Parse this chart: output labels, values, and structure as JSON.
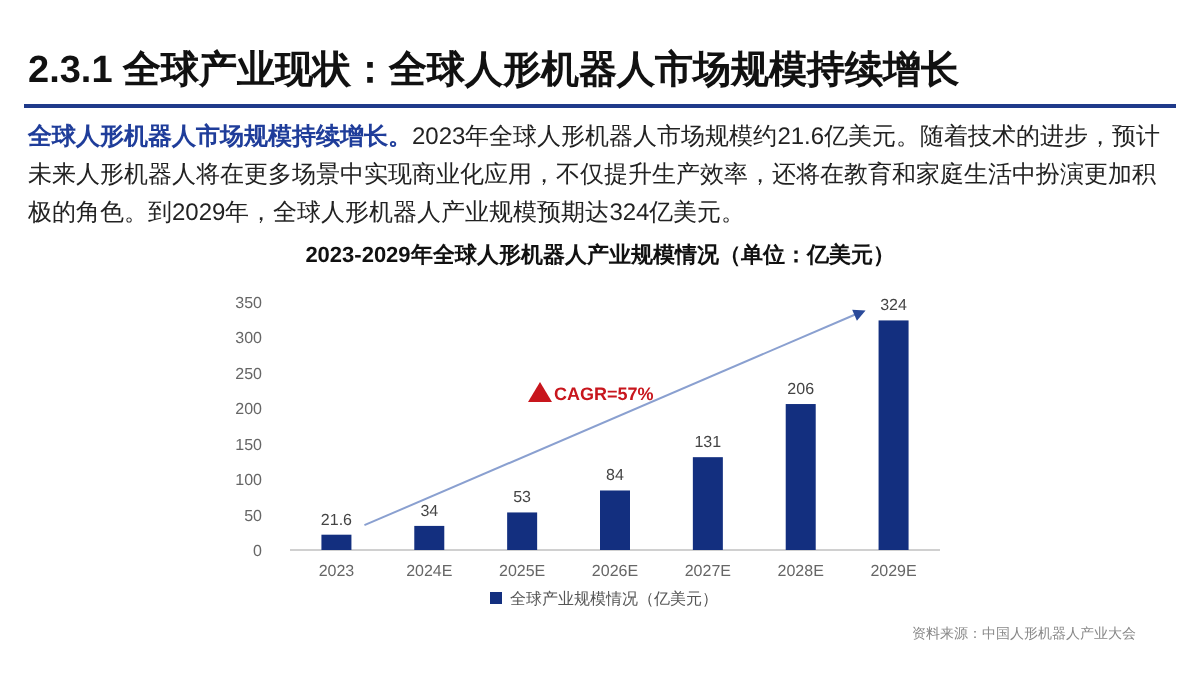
{
  "chart_data": {
    "type": "bar",
    "title": "2.3.1 全球产业现状：全球人形机器人市场规模持续增长",
    "subtitle": "2023-2029年全球人形机器人产业规模情况（单位：亿美元）",
    "annotations": [
      "全球人形机器人市场规模持续增长。",
      "2023年全球人形机器人市场规模约21.6亿美元。随着技术的进步，预计未来人形机器人将在更多场景中实现商业化应用，不仅提升生产效率，还将在教育和家庭生活中扮演更加积极的角色。到2029年，全球人形机器人产业规模预期达324亿美元。",
      "CAGR=57%",
      "资料来源：中国人形机器人产业大会"
    ],
    "categories": [
      "2023",
      "2024E",
      "2025E",
      "2026E",
      "2027E",
      "2028E",
      "2029E"
    ],
    "series": [
      {
        "name": "全球产业规模情况（亿美元）",
        "color": "#132f7f",
        "values": [
          21.6,
          34,
          53,
          84,
          131,
          206,
          324
        ]
      }
    ],
    "ylim": [
      0,
      350
    ],
    "yticks": [
      0,
      50,
      100,
      150,
      200,
      250,
      300,
      350
    ],
    "grid": false,
    "legend": "bottom",
    "data_labels": true
  }
}
